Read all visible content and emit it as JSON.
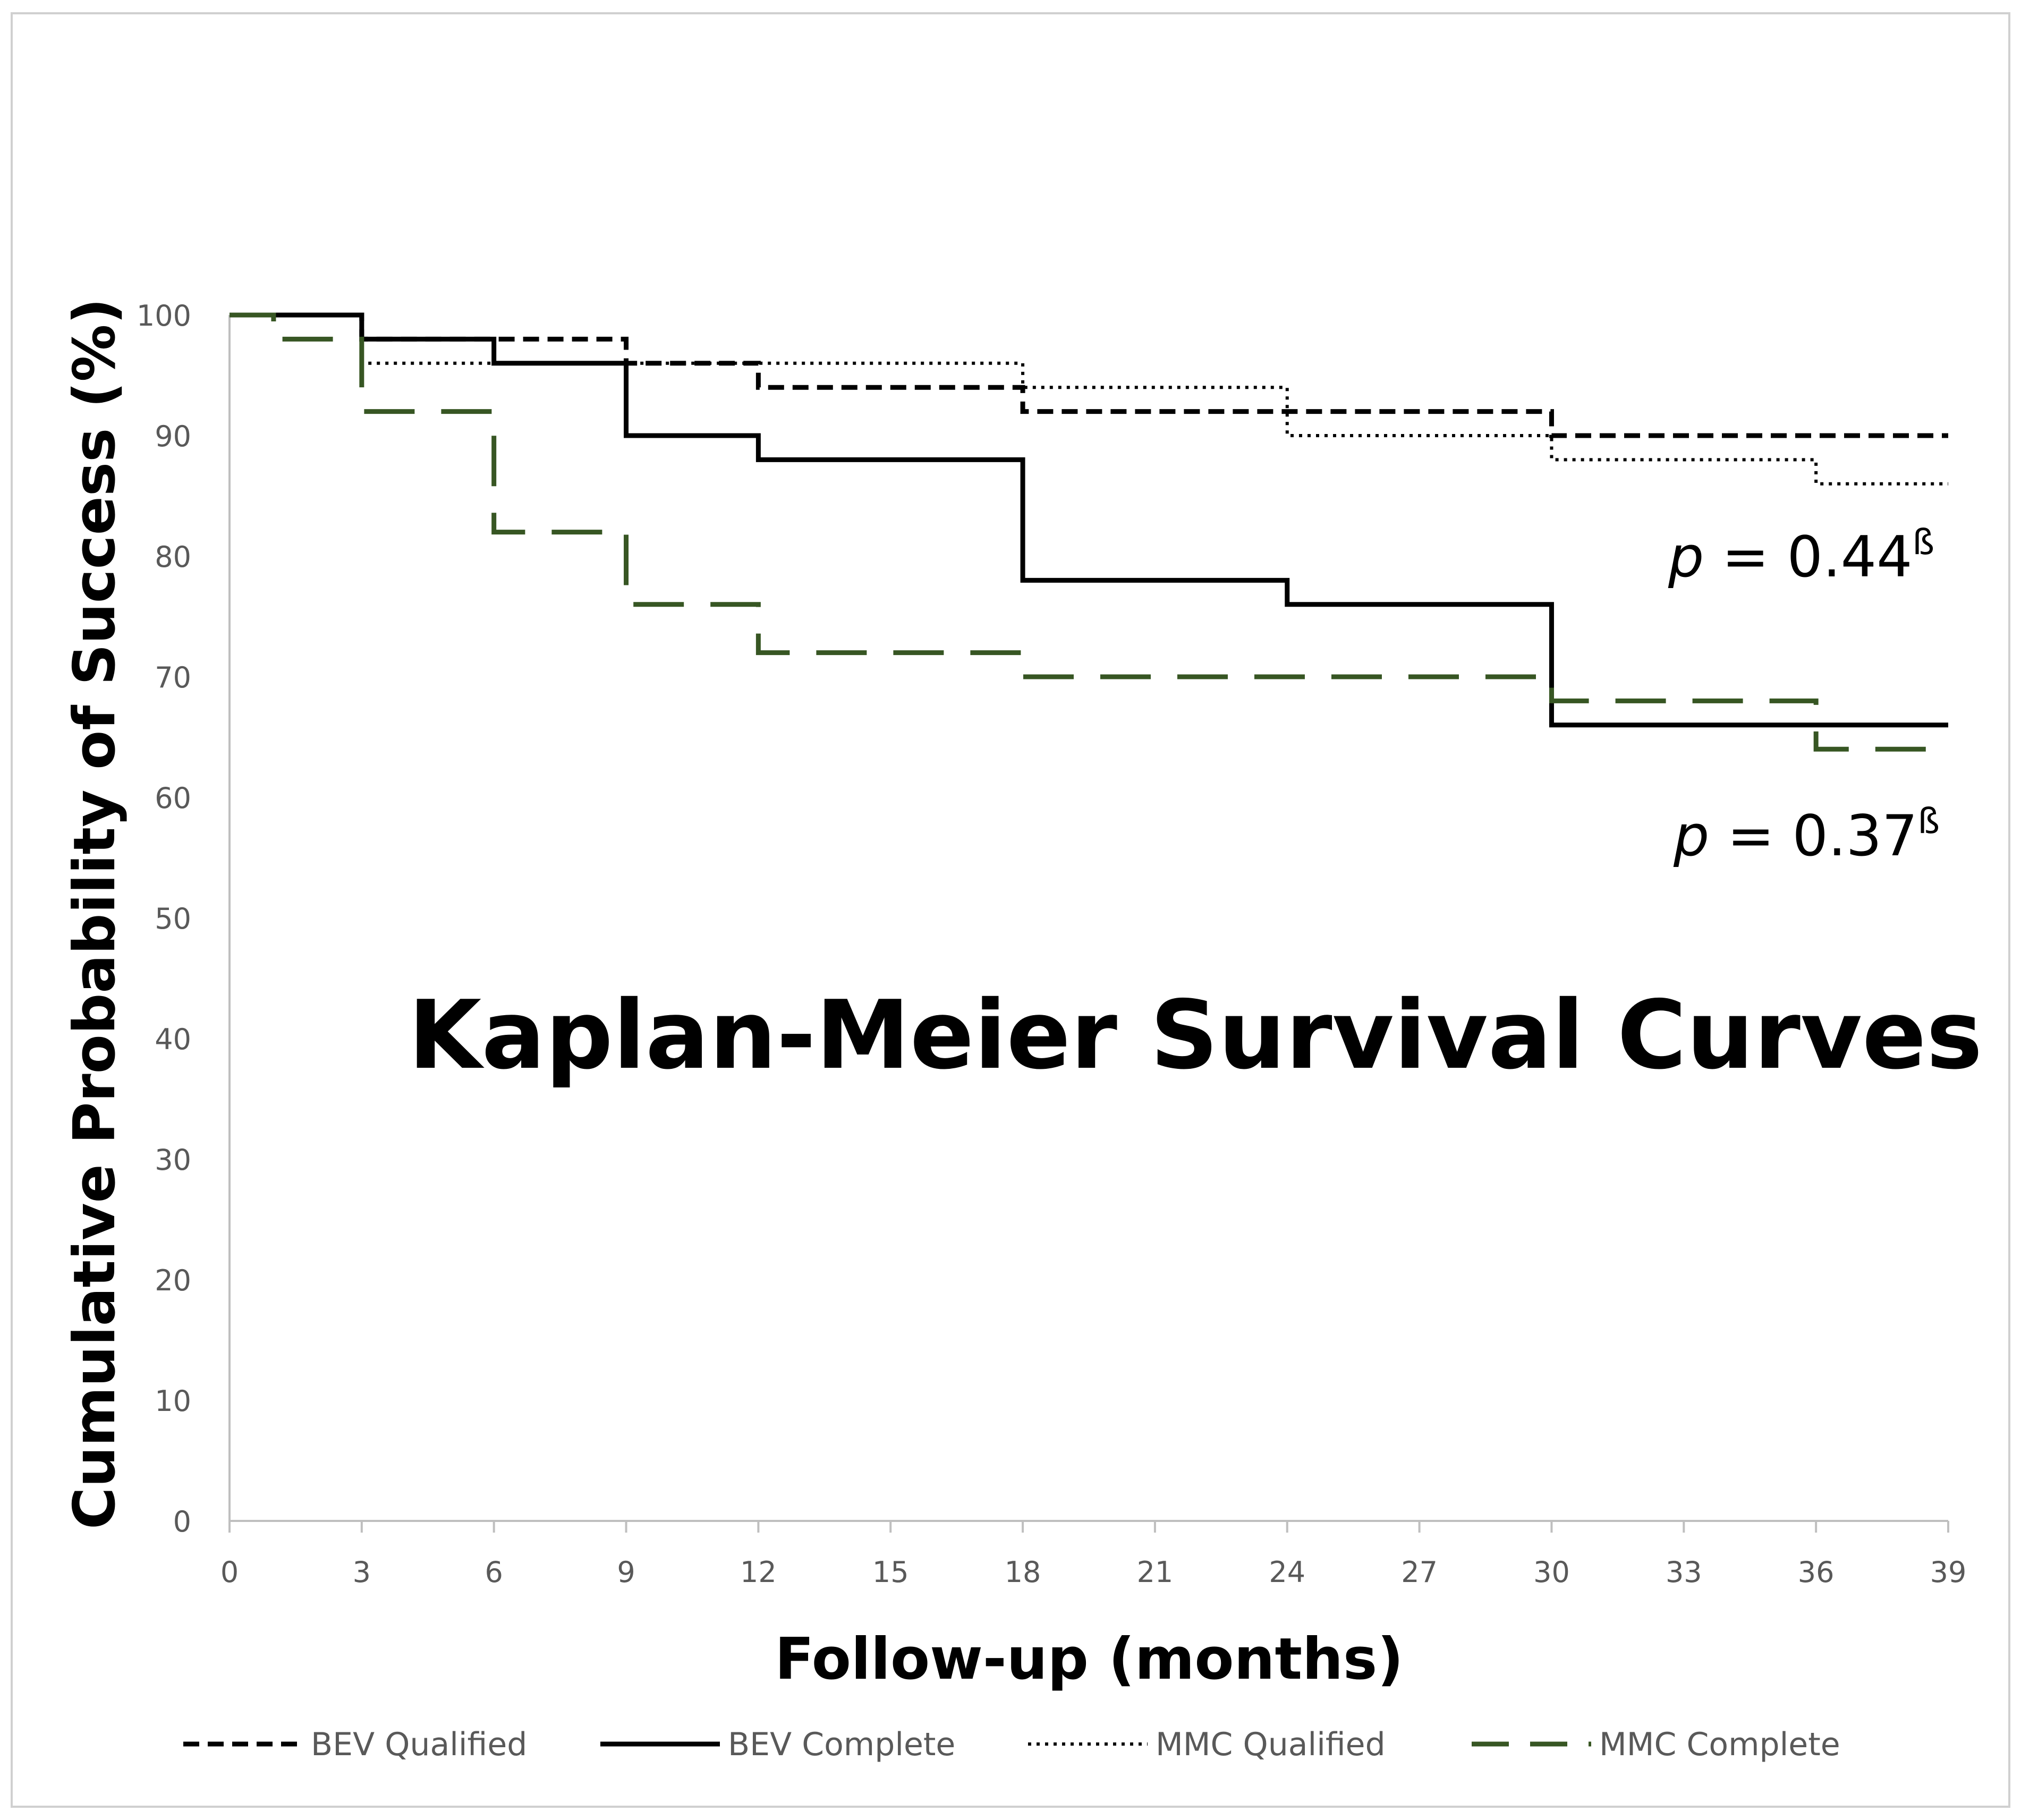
{
  "chart_data": {
    "type": "line",
    "title": "Kaplan-Meier Survival Curves",
    "xlabel": "Follow-up (months)",
    "ylabel": "Cumulative Probability of Success (%)",
    "xlim": [
      0,
      39
    ],
    "ylim": [
      0,
      100
    ],
    "x_ticks": [
      "0",
      "3",
      "6",
      "9",
      "12",
      "15",
      "18",
      "21",
      "24",
      "27",
      "30",
      "33",
      "36",
      "39"
    ],
    "y_ticks": [
      "0",
      "10",
      "20",
      "30",
      "40",
      "50",
      "60",
      "70",
      "80",
      "90",
      "100"
    ],
    "grid": false,
    "legend_position": "bottom",
    "series": [
      {
        "name": "BEV Qualified",
        "style": "dashed",
        "color": "#000000",
        "x": [
          0,
          3,
          9,
          12,
          18,
          30,
          39
        ],
        "y": [
          100,
          98,
          96,
          94,
          92,
          90,
          90
        ]
      },
      {
        "name": "BEV Complete",
        "style": "solid",
        "color": "#000000",
        "x": [
          0,
          3,
          6,
          9,
          12,
          18,
          24,
          30,
          39
        ],
        "y": [
          100,
          98,
          96,
          90,
          88,
          78,
          76,
          66,
          66
        ]
      },
      {
        "name": "MMC Qualified",
        "style": "dotted",
        "color": "#000000",
        "x": [
          0,
          3,
          18,
          24,
          30,
          36,
          39
        ],
        "y": [
          100,
          96,
          94,
          90,
          88,
          86,
          86
        ]
      },
      {
        "name": "MMC Complete",
        "style": "longdash",
        "color": "#375623",
        "x": [
          0,
          1,
          3,
          6,
          9,
          12,
          18,
          30,
          36,
          39
        ],
        "y": [
          100,
          98,
          92,
          82,
          76,
          72,
          70,
          68,
          64,
          64
        ]
      }
    ],
    "annotations": [
      {
        "italic": "p",
        "text": " = 0.44",
        "sup": "ß"
      },
      {
        "italic": "p",
        "text": " = 0.37",
        "sup": "ß"
      }
    ]
  }
}
